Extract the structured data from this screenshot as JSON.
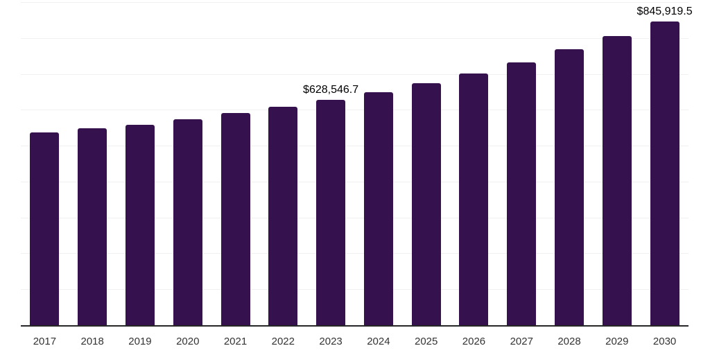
{
  "chart_data": {
    "type": "bar",
    "title": "",
    "xlabel": "",
    "ylabel": "",
    "categories": [
      "2017",
      "2018",
      "2019",
      "2020",
      "2021",
      "2022",
      "2023",
      "2024",
      "2025",
      "2026",
      "2027",
      "2028",
      "2029",
      "2030"
    ],
    "values": [
      536200,
      548400,
      558800,
      573500,
      590400,
      609100,
      628546.7,
      649800,
      674900,
      702000,
      732300,
      767900,
      805200,
      845919.5
    ],
    "annotations": [
      {
        "category": "2023",
        "index": 6,
        "text": "$628,546.7"
      },
      {
        "category": "2030",
        "index": 13,
        "text": "$845,919.5"
      }
    ],
    "ylim": [
      0,
      900000
    ],
    "gridline_step": 100000,
    "grid": true,
    "legend": "none",
    "y_axis_labels_visible": false,
    "colors": {
      "bar": "#35124e",
      "axis": "#262626",
      "gridline": "#f0f0f0",
      "annotation_text": "#000000",
      "tick_text": "#333333",
      "background": "#ffffff"
    }
  }
}
